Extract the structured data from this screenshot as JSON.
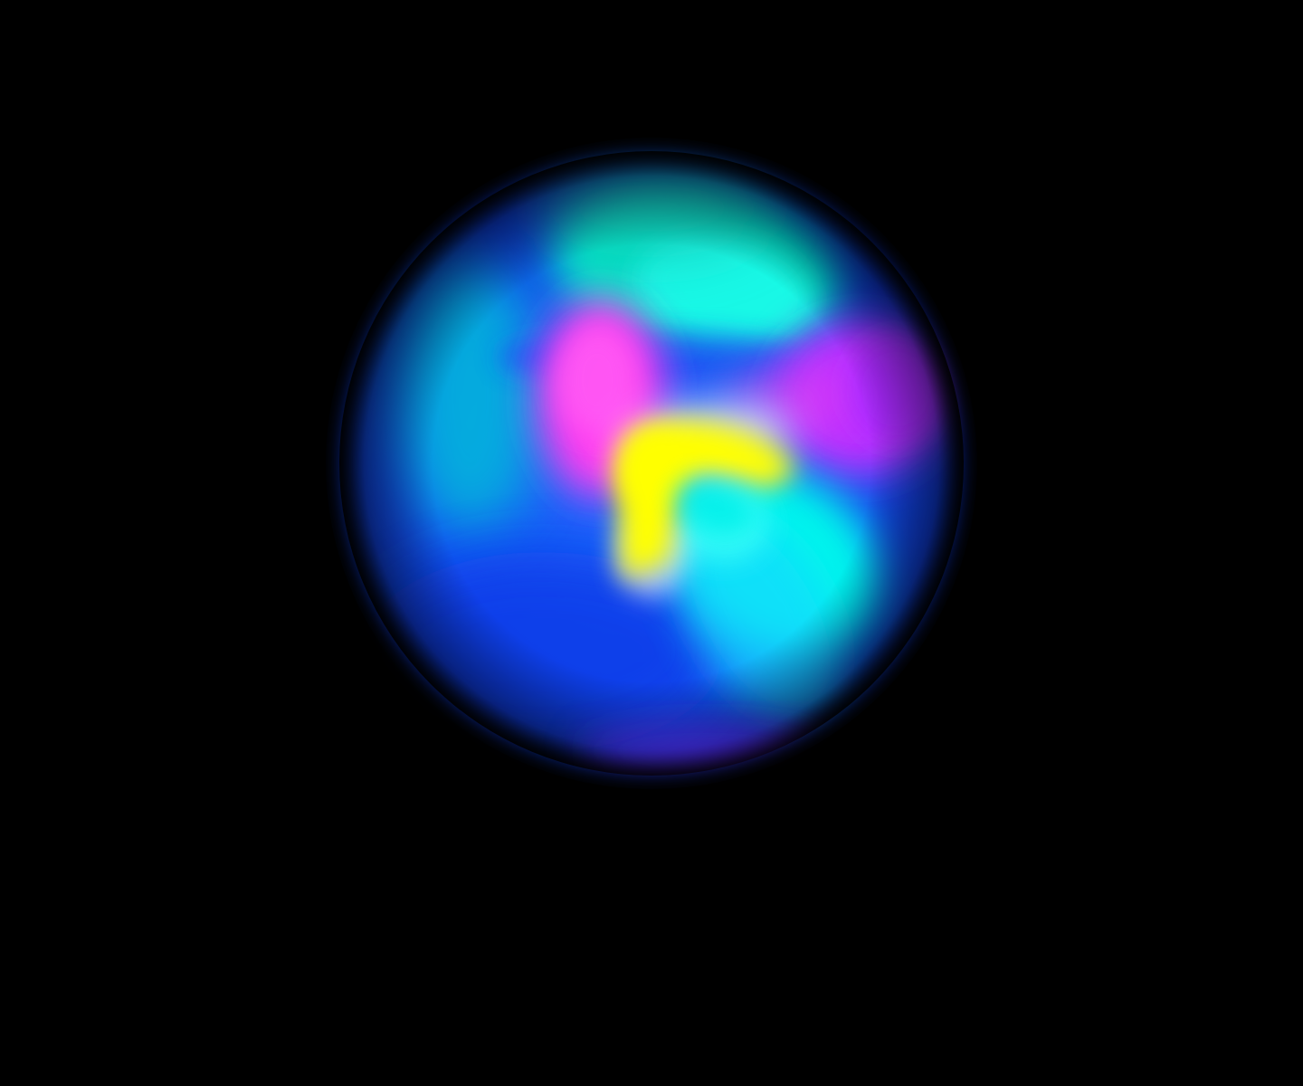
{
  "scene": {
    "background_color": "#000000",
    "subject": "gradient-orb",
    "palette": {
      "base_blue": "#1450f0",
      "deep_blue": "#0a28c8",
      "cyan": "#00f5ec",
      "teal": "#00e6c8",
      "magenta": "#ff3cf0",
      "violet": "#a028ff",
      "yellow": "#ffff00",
      "white_glow": "#ffffff"
    }
  }
}
